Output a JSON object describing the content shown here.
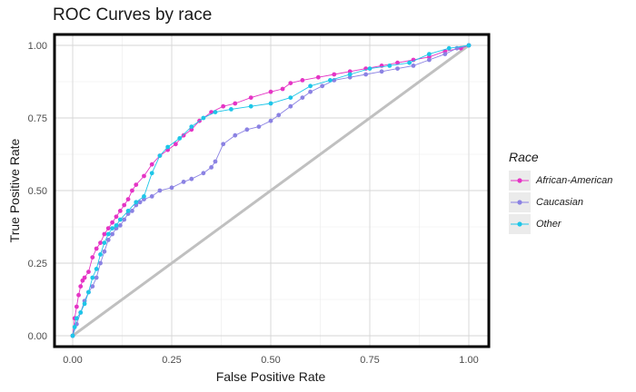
{
  "chart_data": {
    "type": "line",
    "title": "ROC Curves by race",
    "xlabel": "False Positive Rate",
    "ylabel": "True Positive Rate",
    "xlim": [
      0,
      1
    ],
    "ylim": [
      0,
      1
    ],
    "x_ticks": [
      "0.00",
      "0.25",
      "0.50",
      "0.75",
      "1.00"
    ],
    "y_ticks": [
      "0.00",
      "0.25",
      "0.50",
      "0.75",
      "1.00"
    ],
    "grid": true,
    "legend": {
      "title": "Race",
      "position": "right"
    },
    "diagonal_reference": {
      "x": [
        0,
        1
      ],
      "y": [
        0,
        1
      ],
      "color": "#c0c0c0"
    },
    "series": [
      {
        "name": "African-American",
        "color": "#e534c5",
        "x": [
          0.0,
          0.005,
          0.01,
          0.015,
          0.02,
          0.025,
          0.03,
          0.04,
          0.05,
          0.06,
          0.07,
          0.08,
          0.09,
          0.1,
          0.11,
          0.12,
          0.13,
          0.14,
          0.15,
          0.16,
          0.18,
          0.2,
          0.22,
          0.24,
          0.26,
          0.28,
          0.3,
          0.32,
          0.35,
          0.38,
          0.41,
          0.45,
          0.5,
          0.53,
          0.55,
          0.58,
          0.62,
          0.66,
          0.7,
          0.74,
          0.78,
          0.82,
          0.86,
          0.9,
          0.94,
          0.98,
          1.0
        ],
        "y": [
          0.0,
          0.06,
          0.1,
          0.14,
          0.17,
          0.19,
          0.2,
          0.22,
          0.27,
          0.3,
          0.32,
          0.35,
          0.37,
          0.39,
          0.41,
          0.43,
          0.45,
          0.47,
          0.5,
          0.52,
          0.55,
          0.59,
          0.62,
          0.64,
          0.66,
          0.69,
          0.71,
          0.74,
          0.77,
          0.79,
          0.8,
          0.82,
          0.84,
          0.85,
          0.87,
          0.88,
          0.89,
          0.9,
          0.91,
          0.92,
          0.93,
          0.94,
          0.95,
          0.96,
          0.98,
          0.99,
          1.0
        ]
      },
      {
        "name": "Caucasian",
        "color": "#8b82e3",
        "x": [
          0.0,
          0.01,
          0.02,
          0.03,
          0.04,
          0.05,
          0.06,
          0.07,
          0.08,
          0.09,
          0.1,
          0.11,
          0.12,
          0.13,
          0.14,
          0.15,
          0.16,
          0.17,
          0.18,
          0.2,
          0.22,
          0.25,
          0.28,
          0.3,
          0.33,
          0.35,
          0.36,
          0.38,
          0.41,
          0.44,
          0.47,
          0.5,
          0.52,
          0.55,
          0.58,
          0.6,
          0.63,
          0.66,
          0.7,
          0.74,
          0.78,
          0.82,
          0.86,
          0.9,
          0.94,
          0.97,
          1.0
        ],
        "y": [
          0.0,
          0.04,
          0.08,
          0.12,
          0.15,
          0.17,
          0.2,
          0.25,
          0.29,
          0.33,
          0.35,
          0.37,
          0.38,
          0.4,
          0.42,
          0.43,
          0.45,
          0.46,
          0.47,
          0.48,
          0.5,
          0.51,
          0.53,
          0.54,
          0.56,
          0.58,
          0.6,
          0.66,
          0.69,
          0.71,
          0.72,
          0.74,
          0.76,
          0.79,
          0.82,
          0.84,
          0.86,
          0.88,
          0.89,
          0.9,
          0.91,
          0.92,
          0.93,
          0.95,
          0.97,
          0.99,
          1.0
        ]
      },
      {
        "name": "Other",
        "color": "#1dc6e8",
        "x": [
          0.0,
          0.005,
          0.01,
          0.02,
          0.03,
          0.04,
          0.05,
          0.06,
          0.07,
          0.08,
          0.09,
          0.1,
          0.11,
          0.12,
          0.14,
          0.16,
          0.18,
          0.2,
          0.22,
          0.24,
          0.27,
          0.3,
          0.33,
          0.36,
          0.4,
          0.45,
          0.5,
          0.55,
          0.6,
          0.65,
          0.7,
          0.75,
          0.8,
          0.85,
          0.9,
          0.95,
          1.0
        ],
        "y": [
          0.0,
          0.03,
          0.06,
          0.08,
          0.11,
          0.15,
          0.2,
          0.23,
          0.28,
          0.32,
          0.35,
          0.37,
          0.38,
          0.4,
          0.43,
          0.46,
          0.48,
          0.56,
          0.62,
          0.65,
          0.68,
          0.72,
          0.75,
          0.77,
          0.78,
          0.79,
          0.8,
          0.82,
          0.86,
          0.88,
          0.9,
          0.92,
          0.93,
          0.94,
          0.97,
          0.99,
          1.0
        ]
      }
    ]
  }
}
